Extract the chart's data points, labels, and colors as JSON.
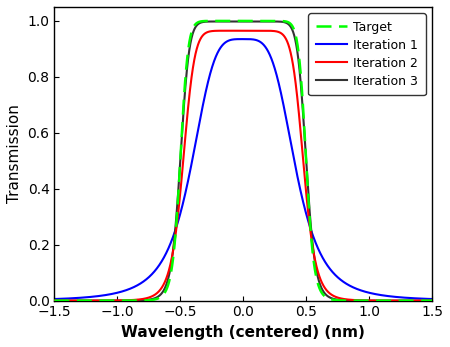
{
  "title": "",
  "xlabel": "Wavelength (centered) (nm)",
  "ylabel": "Transmission",
  "xlim": [
    -1.5,
    1.5
  ],
  "ylim": [
    0.0,
    1.05
  ],
  "yticks": [
    0.0,
    0.2,
    0.4,
    0.6,
    0.8,
    1.0
  ],
  "xticks": [
    -1.5,
    -1.0,
    -0.5,
    0.0,
    0.5,
    1.0,
    1.5
  ],
  "target_color": "#00ff00",
  "iter1_color": "#0000ff",
  "iter2_color": "#ff0000",
  "iter3_color": "#333333",
  "legend_labels": [
    "Target",
    "Iteration 1",
    "Iteration 2",
    "Iteration 3"
  ],
  "background_color": "#ffffff",
  "n_points": 3000,
  "target_hw": 0.5,
  "target_order": 8,
  "iter1_hw": 0.42,
  "iter1_order": 2,
  "iter1_peak": 0.935,
  "iter2_hw": 0.48,
  "iter2_order": 5,
  "iter2_peak": 0.965,
  "iter3_hw": 0.5,
  "iter3_order": 7,
  "iter3_peak": 0.998
}
